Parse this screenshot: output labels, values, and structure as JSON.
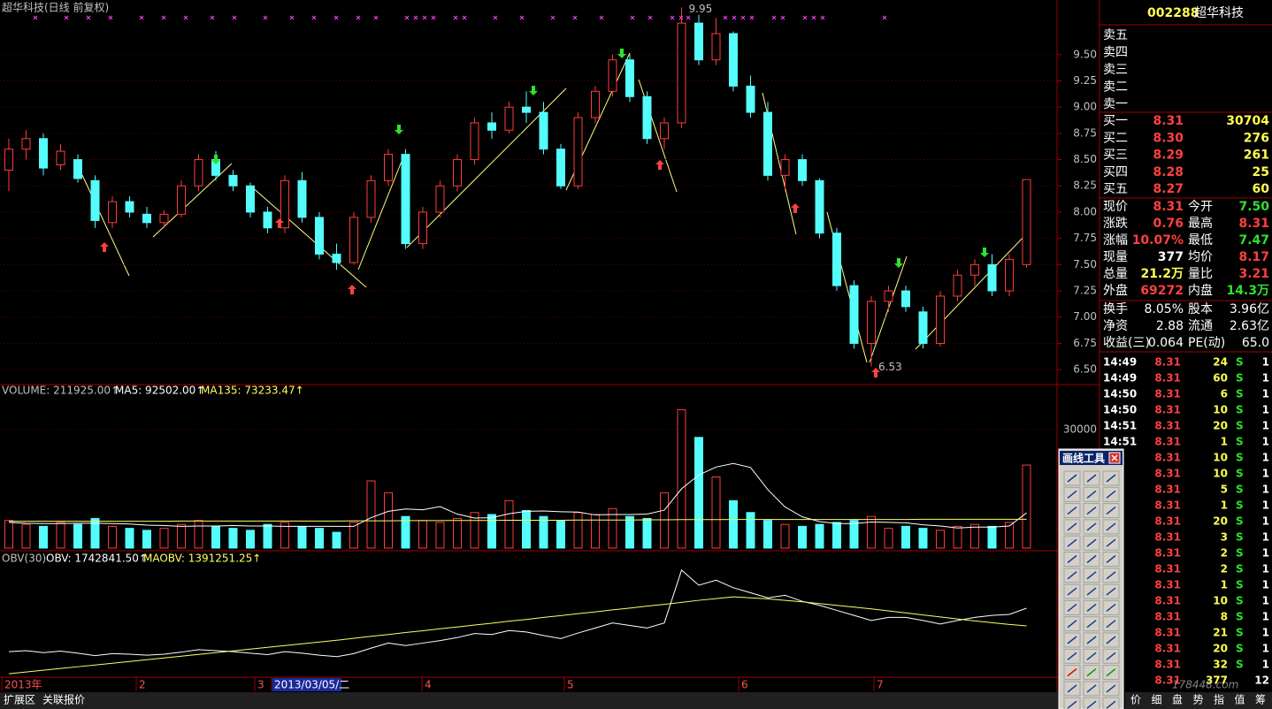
{
  "title": "超华科技(日线 前复权)",
  "price_chart": {
    "ylim": [
      6.4,
      10.02
    ],
    "yticks": [
      {
        "value": 6.5,
        "label": "6.50"
      },
      {
        "value": 6.75,
        "label": "6.75"
      },
      {
        "value": 7,
        "label": "7.00"
      },
      {
        "value": 7.25,
        "label": "7.25"
      },
      {
        "value": 7.5,
        "label": "7.50"
      },
      {
        "value": 7.75,
        "label": "7.75"
      },
      {
        "value": 8,
        "label": "8.00"
      },
      {
        "value": 8.25,
        "label": "8.25"
      },
      {
        "value": 8.5,
        "label": "8.50"
      },
      {
        "value": 8.75,
        "label": "8.75"
      },
      {
        "value": 9,
        "label": "9.00"
      },
      {
        "value": 9.25,
        "label": "9.25"
      },
      {
        "value": 9.5,
        "label": "9.50"
      }
    ],
    "high": 9.95,
    "low": 6.53,
    "candles": [
      [
        8.4,
        8.7,
        8.2,
        8.6
      ],
      [
        8.6,
        8.78,
        8.5,
        8.7
      ],
      [
        8.7,
        8.75,
        8.35,
        8.42
      ],
      [
        8.45,
        8.65,
        8.4,
        8.58
      ],
      [
        8.5,
        8.55,
        8.28,
        8.32
      ],
      [
        8.3,
        8.35,
        7.85,
        7.92
      ],
      [
        7.9,
        8.15,
        7.85,
        8.1
      ],
      [
        8.1,
        8.15,
        7.95,
        8.0
      ],
      [
        7.98,
        8.05,
        7.85,
        7.9
      ],
      [
        7.9,
        8.02,
        7.85,
        7.98
      ],
      [
        7.98,
        8.3,
        7.95,
        8.25
      ],
      [
        8.25,
        8.55,
        8.2,
        8.5
      ],
      [
        8.5,
        8.58,
        8.3,
        8.35
      ],
      [
        8.35,
        8.4,
        8.2,
        8.25
      ],
      [
        8.25,
        8.28,
        7.95,
        8.0
      ],
      [
        8.0,
        8.05,
        7.8,
        7.85
      ],
      [
        7.85,
        8.35,
        7.8,
        8.3
      ],
      [
        8.3,
        8.38,
        7.9,
        7.95
      ],
      [
        7.95,
        8.0,
        7.55,
        7.6
      ],
      [
        7.6,
        7.7,
        7.45,
        7.52
      ],
      [
        7.52,
        8.0,
        7.5,
        7.95
      ],
      [
        7.95,
        8.35,
        7.9,
        8.3
      ],
      [
        8.3,
        8.6,
        8.25,
        8.55
      ],
      [
        8.55,
        8.6,
        7.65,
        7.7
      ],
      [
        7.7,
        8.05,
        7.65,
        8.0
      ],
      [
        8.0,
        8.3,
        7.95,
        8.25
      ],
      [
        8.25,
        8.55,
        8.2,
        8.5
      ],
      [
        8.5,
        8.9,
        8.45,
        8.85
      ],
      [
        8.85,
        8.95,
        8.7,
        8.78
      ],
      [
        8.78,
        9.05,
        8.75,
        9.0
      ],
      [
        9.0,
        9.15,
        8.85,
        8.95
      ],
      [
        8.95,
        9.05,
        8.55,
        8.6
      ],
      [
        8.6,
        8.65,
        8.22,
        8.25
      ],
      [
        8.25,
        8.95,
        8.22,
        8.9
      ],
      [
        8.9,
        9.2,
        8.85,
        9.15
      ],
      [
        9.15,
        9.5,
        9.1,
        9.45
      ],
      [
        9.45,
        9.5,
        9.05,
        9.1
      ],
      [
        9.1,
        9.15,
        8.65,
        8.7
      ],
      [
        8.7,
        8.9,
        8.6,
        8.85
      ],
      [
        8.85,
        9.95,
        8.8,
        9.8
      ],
      [
        9.8,
        9.88,
        9.4,
        9.45
      ],
      [
        9.45,
        9.85,
        9.4,
        9.7
      ],
      [
        9.7,
        9.72,
        9.15,
        9.2
      ],
      [
        9.2,
        9.3,
        8.9,
        8.95
      ],
      [
        8.95,
        9.05,
        8.3,
        8.35
      ],
      [
        8.35,
        8.55,
        8.2,
        8.5
      ],
      [
        8.5,
        8.55,
        8.25,
        8.3
      ],
      [
        8.3,
        8.32,
        7.75,
        7.8
      ],
      [
        7.8,
        7.85,
        7.25,
        7.3
      ],
      [
        7.3,
        7.35,
        6.7,
        6.75
      ],
      [
        6.75,
        7.2,
        6.53,
        7.15
      ],
      [
        7.15,
        7.3,
        7.05,
        7.25
      ],
      [
        7.25,
        7.3,
        7.05,
        7.1
      ],
      [
        7.05,
        7.1,
        6.7,
        6.75
      ],
      [
        6.75,
        7.25,
        6.72,
        7.2
      ],
      [
        7.2,
        7.45,
        7.15,
        7.4
      ],
      [
        7.4,
        7.55,
        7.3,
        7.5
      ],
      [
        7.5,
        7.6,
        7.2,
        7.25
      ],
      [
        7.25,
        7.6,
        7.2,
        7.55
      ],
      [
        7.5,
        8.31,
        7.47,
        8.31
      ]
    ]
  },
  "volume_chart": {
    "legend": [
      "VOLUME: 211925.00↑",
      "MA5: 92502.00↑",
      "MA135: 73233.47↑"
    ],
    "ylim": [
      0,
      36000
    ],
    "yticks": [
      30000
    ],
    "values": [
      7000,
      6000,
      5500,
      6500,
      6000,
      7500,
      5500,
      5000,
      4500,
      5000,
      6000,
      7000,
      5500,
      5000,
      4500,
      6000,
      6500,
      5500,
      5000,
      4000,
      6500,
      17000,
      14000,
      8000,
      7000,
      6500,
      7500,
      9000,
      8500,
      12000,
      9500,
      8000,
      7000,
      9000,
      8500,
      10000,
      8000,
      7500,
      14000,
      35000,
      28000,
      18000,
      12000,
      9000,
      7000,
      6000,
      5500,
      6000,
      6500,
      7000,
      8000,
      5000,
      5500,
      5000,
      4500,
      5500,
      6000,
      5500,
      6500,
      21000
    ],
    "ma5": [
      6500,
      6300,
      6200,
      6200,
      6300,
      6300,
      6200,
      6100,
      5800,
      5700,
      5500,
      5600,
      5600,
      5700,
      5600,
      5600,
      5500,
      5500,
      5500,
      5500,
      5500,
      7700,
      9300,
      9900,
      9700,
      10500,
      8600,
      7600,
      7700,
      8700,
      9300,
      9400,
      9200,
      9100,
      8400,
      8500,
      8500,
      8600,
      9600,
      15000,
      18500,
      20500,
      21400,
      20400,
      14800,
      10400,
      7900,
      6700,
      6200,
      6200,
      6600,
      6500,
      6400,
      5900,
      5600,
      5100,
      5300,
      5300,
      5600,
      8900
    ],
    "ma135": [
      6800,
      6800,
      6800,
      6800,
      6800,
      6800,
      6800,
      6800,
      6800,
      6800,
      6850,
      6850,
      6850,
      6850,
      6850,
      6850,
      6850,
      6850,
      6850,
      6850,
      6900,
      6900,
      6900,
      6950,
      6950,
      6950,
      7000,
      7000,
      7000,
      7050,
      7050,
      7050,
      7050,
      7100,
      7100,
      7100,
      7100,
      7150,
      7150,
      7200,
      7200,
      7200,
      7250,
      7250,
      7250,
      7250,
      7250,
      7250,
      7250,
      7250,
      7250,
      7250,
      7250,
      7300,
      7300,
      7300,
      7300,
      7300,
      7300,
      7300
    ]
  },
  "obv_chart": {
    "legend": [
      "OBV(30)",
      "OBV: 1742841.50↑",
      "MAOBV: 1391251.25↑"
    ],
    "ylim": [
      390000,
      2850000
    ],
    "obv": [
      880000,
      900000,
      860000,
      890000,
      850000,
      800000,
      840000,
      830000,
      810000,
      830000,
      870000,
      920000,
      900000,
      880000,
      850000,
      820000,
      880000,
      850000,
      810000,
      780000,
      840000,
      950000,
      1050000,
      1000000,
      1050000,
      1100000,
      1160000,
      1240000,
      1220000,
      1300000,
      1270000,
      1200000,
      1140000,
      1250000,
      1350000,
      1450000,
      1400000,
      1350000,
      1450000,
      2500000,
      2200000,
      2300000,
      2150000,
      2050000,
      1950000,
      2000000,
      1880000,
      1800000,
      1700000,
      1600000,
      1500000,
      1560000,
      1560000,
      1500000,
      1430000,
      1500000,
      1560000,
      1600000,
      1620000,
      1742841.5
    ],
    "maobv": [
      440000,
      475000,
      510000,
      545000,
      580000,
      615000,
      650000,
      685000,
      720000,
      755000,
      790000,
      825000,
      860000,
      895000,
      930000,
      965000,
      1000000,
      1035000,
      1070000,
      1105000,
      1145000,
      1185000,
      1220000,
      1260000,
      1295000,
      1335000,
      1370000,
      1410000,
      1445000,
      1485000,
      1520000,
      1560000,
      1595000,
      1635000,
      1670000,
      1710000,
      1745000,
      1785000,
      1820000,
      1860000,
      1900000,
      1935000,
      1970000,
      1950000,
      1930000,
      1900000,
      1870000,
      1835000,
      1800000,
      1765000,
      1730000,
      1690000,
      1650000,
      1610000,
      1570000,
      1530000,
      1490000,
      1455000,
      1420000,
      1391251.25
    ]
  },
  "x_axis": [
    "2013年",
    "2",
    "3",
    "2013/03/05/二",
    "4",
    "5",
    "6",
    "7"
  ],
  "bottom_tabs": [
    "扩展区",
    "关联报价"
  ],
  "quote": {
    "code": "002288",
    "name": "超华科技",
    "sell": [
      "卖五",
      "卖四",
      "卖三",
      "卖二",
      "卖一"
    ],
    "buy": [
      [
        "买一",
        "8.31",
        "30704"
      ],
      [
        "买二",
        "8.30",
        "276"
      ],
      [
        "买三",
        "8.29",
        "261"
      ],
      [
        "买四",
        "8.28",
        "25"
      ],
      [
        "买五",
        "8.27",
        "60"
      ]
    ],
    "stats": [
      [
        "现价",
        "8.31",
        "今开",
        "7.50"
      ],
      [
        "涨跌",
        "0.76",
        "最高",
        "8.31"
      ],
      [
        "涨幅",
        "10.07%",
        "最低",
        "7.47"
      ],
      [
        "现量",
        "377",
        "均价",
        "8.17"
      ],
      [
        "总量",
        "21.2万",
        "量比",
        "3.21"
      ],
      [
        "外盘",
        "69272",
        "内盘",
        "14.3万"
      ]
    ],
    "info": [
      [
        "换手",
        "8.05%",
        "股本",
        "3.96亿"
      ],
      [
        "净资",
        "2.88",
        "流通",
        "2.63亿"
      ],
      [
        "收益(三)",
        "0.064",
        "PE(动)",
        "65.0"
      ]
    ],
    "ticks": [
      [
        "14:49",
        "8.31",
        "24",
        "S",
        "1"
      ],
      [
        "14:49",
        "8.31",
        "60",
        "S",
        "1"
      ],
      [
        "14:50",
        "8.31",
        "6",
        "S",
        "1"
      ],
      [
        "14:50",
        "8.31",
        "10",
        "S",
        "1"
      ],
      [
        "14:51",
        "8.31",
        "20",
        "S",
        "1"
      ],
      [
        "14:51",
        "8.31",
        "1",
        "S",
        "1"
      ]
    ],
    "ticks_covered": [
      [
        "8.31",
        "10",
        "S",
        "1"
      ],
      [
        "8.31",
        "10",
        "S",
        "1"
      ],
      [
        "8.31",
        "5",
        "S",
        "1"
      ],
      [
        "8.31",
        "1",
        "S",
        "1"
      ],
      [
        "8.31",
        "20",
        "S",
        "1"
      ],
      [
        "8.31",
        "3",
        "S",
        "1"
      ],
      [
        "8.31",
        "2",
        "S",
        "1"
      ],
      [
        "8.31",
        "2",
        "S",
        "1"
      ],
      [
        "8.31",
        "1",
        "S",
        "1"
      ],
      [
        "8.31",
        "10",
        "S",
        "1"
      ],
      [
        "8.31",
        "8",
        "S",
        "1"
      ],
      [
        "8.31",
        "21",
        "S",
        "1"
      ],
      [
        "8.31",
        "20",
        "S",
        "1"
      ],
      [
        "8.31",
        "32",
        "S",
        "1"
      ],
      [
        "8.31",
        "377",
        "12"
      ]
    ],
    "tabs": [
      "价",
      "细",
      "盘",
      "势",
      "指",
      "值",
      "筹"
    ]
  },
  "popup": {
    "title": "画线工具"
  },
  "watermark": "178448.com"
}
